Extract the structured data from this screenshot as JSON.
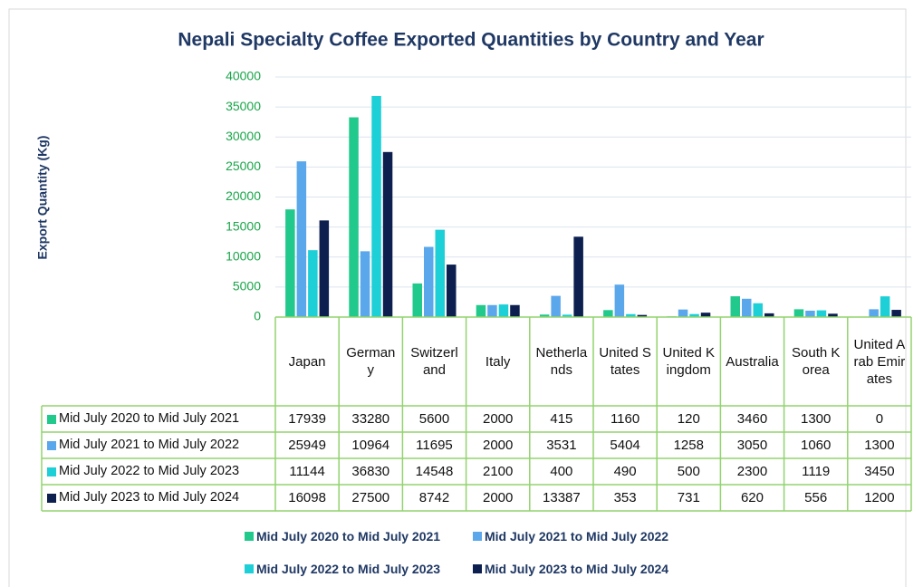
{
  "chart_data": {
    "type": "bar",
    "title": "Nepali Specialty Coffee Exported Quantities by Country and Year",
    "y_label": "Export Quantity (Kg)",
    "categories": [
      "Japan",
      "Germany",
      "Switzerland",
      "Italy",
      "Netherlands",
      "United States",
      "United Kingdom",
      "Australia",
      "South Korea",
      "United Arab Emirates"
    ],
    "series": [
      {
        "name": "Mid July 2020 to Mid July 2021",
        "color": "#22c98c",
        "values": [
          17939,
          33280,
          5600,
          2000,
          415,
          1160,
          120,
          3460,
          1300,
          0
        ]
      },
      {
        "name": "Mid July 2021 to Mid July 2022",
        "color": "#5ba7ec",
        "values": [
          25949,
          10964,
          11695,
          2000,
          3531,
          5404,
          1258,
          3050,
          1060,
          1300
        ]
      },
      {
        "name": "Mid July 2022 to Mid July 2023",
        "color": "#1dcfd6",
        "values": [
          11144,
          36830,
          14548,
          2100,
          400,
          490,
          500,
          2300,
          1119,
          3450
        ]
      },
      {
        "name": "Mid July 2023 to Mid July 2024",
        "color": "#0c1f4f",
        "values": [
          16098,
          27500,
          8742,
          2000,
          13387,
          353,
          731,
          620,
          556,
          1200
        ]
      }
    ],
    "ylim": [
      0,
      40000
    ],
    "yticks": [
      0,
      5000,
      10000,
      15000,
      20000,
      25000,
      30000,
      35000,
      40000
    ],
    "grid": true
  }
}
